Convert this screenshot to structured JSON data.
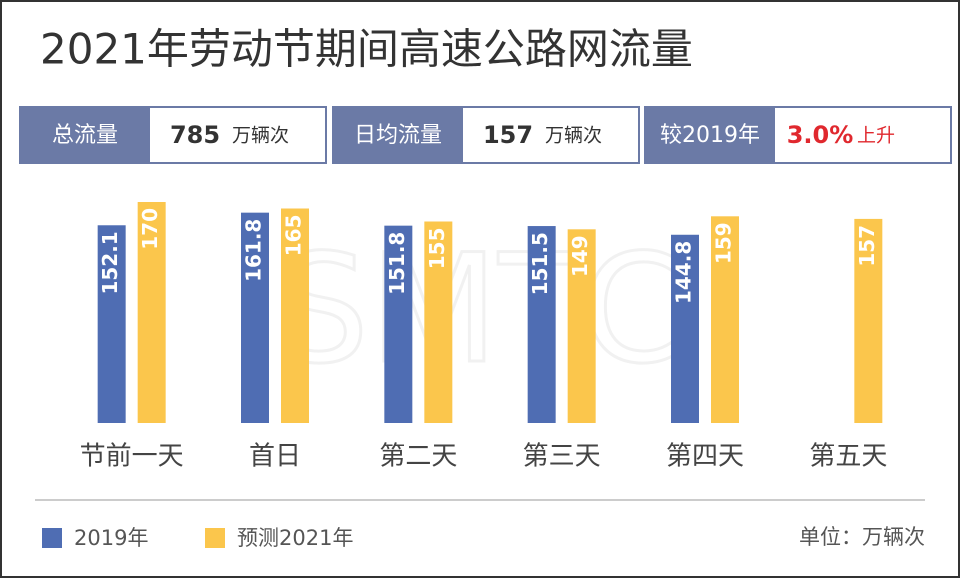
{
  "chart_data": {
    "type": "bar",
    "title": "2021年劳动节期间高速公路网流量",
    "stats": [
      {
        "label": "总流量",
        "value": 785,
        "unit": "万辆次"
      },
      {
        "label": "日均流量",
        "value": 157,
        "unit": "万辆次"
      },
      {
        "label": "较2019年",
        "value": 3.0,
        "value_label": "3.0%",
        "unit": "上升"
      }
    ],
    "watermark": "SMTC",
    "categories": [
      "节前一天",
      "首日",
      "第二天",
      "第三天",
      "第四天",
      "第五天"
    ],
    "series": [
      {
        "name": "2019年",
        "color": "#4f6db3",
        "values": [
          152.1,
          161.8,
          151.8,
          151.5,
          144.8,
          null
        ]
      },
      {
        "name": "预测2021年",
        "color": "#fbc64c",
        "values": [
          170,
          165,
          155,
          149,
          159,
          157
        ]
      }
    ],
    "ylim": [
      0,
      175
    ],
    "unit_note": "单位：万辆次"
  }
}
